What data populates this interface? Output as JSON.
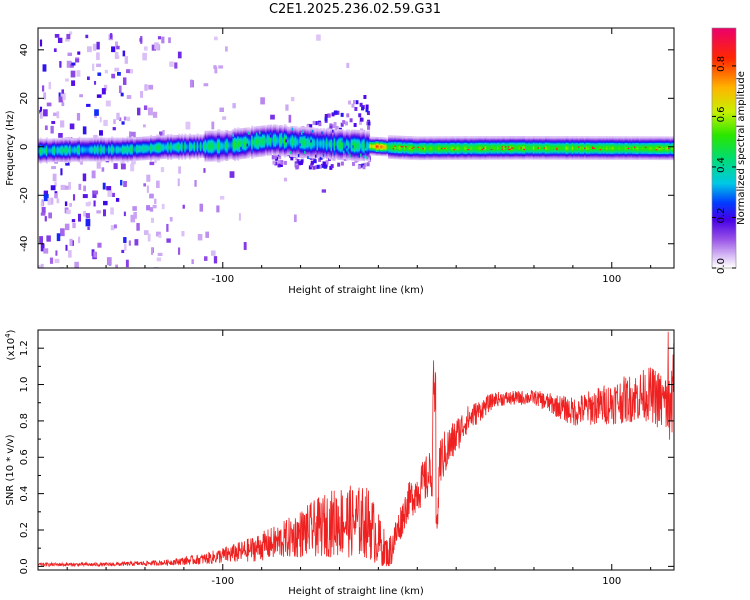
{
  "title": "C2E1.2025.236.02.59.G31",
  "colors": {
    "snr_line": "#ee2020",
    "frame": "#000000",
    "background": "#ffffff"
  },
  "chart_data": [
    {
      "type": "heatmap",
      "name": "spectrogram",
      "xlabel": "Height of straight line (km)",
      "ylabel": "Frequency (Hz)",
      "xlim": [
        -195,
        132
      ],
      "ylim": [
        -50,
        49
      ],
      "x_ticks": [
        -100,
        100
      ],
      "x_tick_labels": [
        "-100",
        "100"
      ],
      "y_ticks": [
        -40,
        -20,
        0,
        20,
        40
      ],
      "y_tick_labels": [
        "-40",
        "-20",
        "0",
        "20",
        "40"
      ],
      "colorbar": {
        "label": "Normalized spectral amplitude",
        "range": [
          0,
          0.95
        ],
        "ticks": [
          0.0,
          0.2,
          0.4,
          0.6,
          0.8
        ],
        "tick_labels": [
          "0.0",
          "0.2",
          "0.4",
          "0.6",
          "0.8"
        ]
      },
      "ridge": [
        {
          "x": -195,
          "f": -1.5
        },
        {
          "x": -170,
          "f": -1
        },
        {
          "x": -150,
          "f": -1
        },
        {
          "x": -130,
          "f": 0
        },
        {
          "x": -100,
          "f": 0.5
        },
        {
          "x": -85,
          "f": 2
        },
        {
          "x": -75,
          "f": 3
        },
        {
          "x": -60,
          "f": 2
        },
        {
          "x": -40,
          "f": 1
        },
        {
          "x": -25,
          "f": 0.5
        },
        {
          "x": -15,
          "f": 0
        },
        {
          "x": 0,
          "f": -0.5
        },
        {
          "x": 50,
          "f": -0.3
        },
        {
          "x": 132,
          "f": -0.5
        }
      ]
    },
    {
      "type": "line",
      "name": "snr",
      "xlabel": "Height of straight line (km)",
      "ylabel": "SNR (10 * v/v)",
      "scale_label": "(x10",
      "scale_exponent": "4",
      "xlim": [
        -195,
        132
      ],
      "ylim": [
        -0.02,
        1.3
      ],
      "x_ticks": [
        -100,
        100
      ],
      "x_tick_labels": [
        "-100",
        "100"
      ],
      "y_ticks": [
        0.0,
        0.2,
        0.4,
        0.6,
        0.8,
        1.0,
        1.2
      ],
      "y_tick_labels": [
        "0.0",
        "0.2",
        "0.4",
        "0.6",
        "0.8",
        "1.0",
        "1.2"
      ],
      "envelope": [
        {
          "x": -195,
          "y": 0.01,
          "noise": 0.01
        },
        {
          "x": -160,
          "y": 0.01,
          "noise": 0.01
        },
        {
          "x": -130,
          "y": 0.02,
          "noise": 0.015
        },
        {
          "x": -110,
          "y": 0.04,
          "noise": 0.03
        },
        {
          "x": -90,
          "y": 0.08,
          "noise": 0.06
        },
        {
          "x": -70,
          "y": 0.14,
          "noise": 0.1
        },
        {
          "x": -55,
          "y": 0.2,
          "noise": 0.15
        },
        {
          "x": -40,
          "y": 0.25,
          "noise": 0.2
        },
        {
          "x": -25,
          "y": 0.24,
          "noise": 0.2
        },
        {
          "x": -15,
          "y": 0.05,
          "noise": 0.1
        },
        {
          "x": -5,
          "y": 0.35,
          "noise": 0.1
        },
        {
          "x": 10,
          "y": 0.55,
          "noise": 0.15
        },
        {
          "x": 25,
          "y": 0.8,
          "noise": 0.08
        },
        {
          "x": 40,
          "y": 0.92,
          "noise": 0.04
        },
        {
          "x": 60,
          "y": 0.93,
          "noise": 0.04
        },
        {
          "x": 80,
          "y": 0.85,
          "noise": 0.08
        },
        {
          "x": 100,
          "y": 0.9,
          "noise": 0.12
        },
        {
          "x": 120,
          "y": 0.95,
          "noise": 0.15
        },
        {
          "x": 132,
          "y": 0.85,
          "noise": 0.2
        }
      ]
    }
  ]
}
